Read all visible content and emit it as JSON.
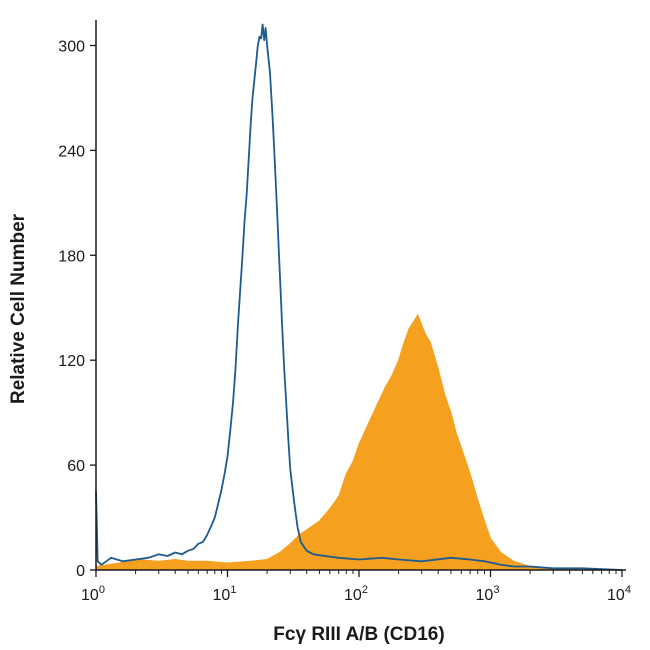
{
  "chart_data": {
    "type": "area",
    "xlabel": "Fcγ RIII A/B (CD16)",
    "ylabel": "Relative Cell Number",
    "x_scale": "log",
    "xlim": [
      1,
      10000
    ],
    "ylim": [
      0,
      310
    ],
    "x_ticks": [
      {
        "value": 1,
        "base": "10",
        "exp": "0"
      },
      {
        "value": 10,
        "base": "10",
        "exp": "1"
      },
      {
        "value": 100,
        "base": "10",
        "exp": "2"
      },
      {
        "value": 1000,
        "base": "10",
        "exp": "3"
      },
      {
        "value": 10000,
        "base": "10",
        "exp": "4"
      }
    ],
    "y_ticks": [
      0,
      60,
      120,
      180,
      240,
      300
    ],
    "grid": false,
    "series": [
      {
        "style": "outline",
        "color": "#1f5a8f",
        "points": [
          [
            1.0,
            45
          ],
          [
            1.03,
            5
          ],
          [
            1.1,
            3
          ],
          [
            1.3,
            7
          ],
          [
            1.6,
            5
          ],
          [
            2.0,
            6
          ],
          [
            2.5,
            7
          ],
          [
            3.0,
            9
          ],
          [
            3.5,
            8
          ],
          [
            4.0,
            10
          ],
          [
            4.5,
            9
          ],
          [
            5.0,
            11
          ],
          [
            5.5,
            12
          ],
          [
            6.0,
            15
          ],
          [
            6.5,
            16
          ],
          [
            7.0,
            20
          ],
          [
            7.5,
            25
          ],
          [
            8.0,
            30
          ],
          [
            8.5,
            38
          ],
          [
            9.0,
            46
          ],
          [
            9.5,
            55
          ],
          [
            10.0,
            65
          ],
          [
            10.5,
            80
          ],
          [
            11.0,
            95
          ],
          [
            11.5,
            115
          ],
          [
            12.0,
            140
          ],
          [
            12.5,
            160
          ],
          [
            13.0,
            180
          ],
          [
            13.5,
            200
          ],
          [
            14.0,
            215
          ],
          [
            14.5,
            235
          ],
          [
            15.0,
            255
          ],
          [
            15.5,
            270
          ],
          [
            16.0,
            280
          ],
          [
            16.5,
            290
          ],
          [
            17.0,
            300
          ],
          [
            17.5,
            305
          ],
          [
            18.0,
            304
          ],
          [
            18.5,
            312
          ],
          [
            19.0,
            303
          ],
          [
            19.5,
            310
          ],
          [
            20.0,
            300
          ],
          [
            21.0,
            285
          ],
          [
            22.0,
            260
          ],
          [
            23.0,
            230
          ],
          [
            24.0,
            200
          ],
          [
            25.0,
            170
          ],
          [
            26.0,
            140
          ],
          [
            27.0,
            115
          ],
          [
            28.0,
            95
          ],
          [
            29.0,
            75
          ],
          [
            30.0,
            58
          ],
          [
            32.0,
            40
          ],
          [
            34.0,
            25
          ],
          [
            36.0,
            16
          ],
          [
            40.0,
            11
          ],
          [
            45.0,
            9
          ],
          [
            55.0,
            8
          ],
          [
            70.0,
            7
          ],
          [
            100.0,
            6
          ],
          [
            150.0,
            7
          ],
          [
            200.0,
            6
          ],
          [
            300.0,
            5
          ],
          [
            500.0,
            7
          ],
          [
            700.0,
            6
          ],
          [
            900.0,
            5
          ],
          [
            1200.0,
            3
          ],
          [
            1500.0,
            2
          ],
          [
            2000.0,
            2
          ],
          [
            3000.0,
            1
          ],
          [
            5000.0,
            1
          ],
          [
            10000.0,
            0
          ]
        ]
      },
      {
        "style": "filled",
        "color": "#f5a01f",
        "points": [
          [
            1.0,
            2
          ],
          [
            1.5,
            4
          ],
          [
            2.0,
            6
          ],
          [
            3.0,
            5
          ],
          [
            4.0,
            6
          ],
          [
            5.0,
            5
          ],
          [
            7.0,
            5
          ],
          [
            10.0,
            4
          ],
          [
            15.0,
            5
          ],
          [
            20.0,
            6
          ],
          [
            25.0,
            10
          ],
          [
            30.0,
            15
          ],
          [
            35.0,
            20
          ],
          [
            40.0,
            23
          ],
          [
            50.0,
            28
          ],
          [
            60.0,
            35
          ],
          [
            70.0,
            42
          ],
          [
            80.0,
            55
          ],
          [
            90.0,
            62
          ],
          [
            100.0,
            72
          ],
          [
            120.0,
            85
          ],
          [
            140.0,
            96
          ],
          [
            160.0,
            105
          ],
          [
            180.0,
            112
          ],
          [
            200.0,
            120
          ],
          [
            220.0,
            130
          ],
          [
            240.0,
            138
          ],
          [
            260.0,
            142
          ],
          [
            280.0,
            146
          ],
          [
            300.0,
            140
          ],
          [
            320.0,
            135
          ],
          [
            350.0,
            130
          ],
          [
            400.0,
            115
          ],
          [
            450.0,
            100
          ],
          [
            500.0,
            90
          ],
          [
            550.0,
            78
          ],
          [
            600.0,
            70
          ],
          [
            700.0,
            55
          ],
          [
            800.0,
            40
          ],
          [
            900.0,
            28
          ],
          [
            1000.0,
            18
          ],
          [
            1200.0,
            10
          ],
          [
            1500.0,
            5
          ],
          [
            2000.0,
            2
          ],
          [
            3000.0,
            1
          ],
          [
            5000.0,
            0
          ]
        ]
      }
    ]
  }
}
